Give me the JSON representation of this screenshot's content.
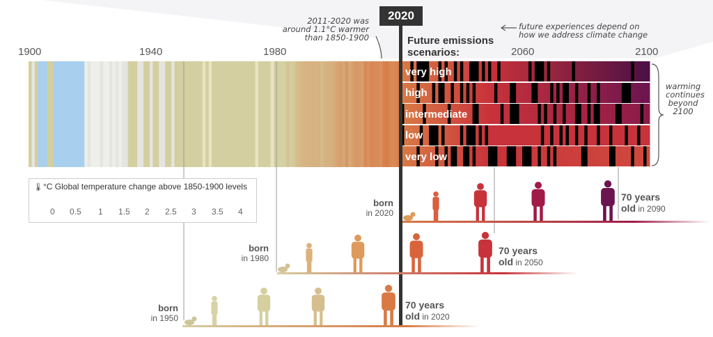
{
  "year_badge": "2020",
  "axis_years": [
    "1900",
    "1940",
    "1980",
    "2060",
    "2100"
  ],
  "notes": {
    "past_line1": "2011-2020 was",
    "past_line2": "around 1.1°C warmer",
    "past_line3": "than 1850-1900",
    "future_line1": "future experiences depend on",
    "future_line2": "how we address climate change",
    "right_line1": "warming",
    "right_line2": "continues",
    "right_line3": "beyond",
    "right_line4": "2100"
  },
  "emissions_title_line1": "Future emissions",
  "emissions_title_line2": "scenarios:",
  "scenarios": [
    "very high",
    "high",
    "intermediate",
    "low",
    "very low"
  ],
  "legend": {
    "unit": "°C",
    "title": "Global temperature change above 1850-1900 levels",
    "ticks": [
      "0",
      "0.5",
      "1",
      "1.5",
      "2",
      "2.5",
      "3",
      "3.5",
      "4"
    ]
  },
  "cohorts": [
    {
      "born_word": "born",
      "born_year": "in 2020",
      "age_bold1": "70 years",
      "age_bold2": "old",
      "age_year": "in 2090"
    },
    {
      "born_word": "born",
      "born_year": "in 1980",
      "age_bold1": "70 years",
      "age_bold2": "old",
      "age_year": "in 2050"
    },
    {
      "born_word": "born",
      "born_year": "in 1950",
      "age_bold1": "70 years",
      "age_bold2": "old",
      "age_year": "in 2020"
    }
  ],
  "colors": {
    "cold": "#a9cfee",
    "neutral": "#e4e4e0",
    "tan": "#d4cfa1",
    "orange": "#d97a45",
    "red": "#c8323a",
    "crimson": "#a01b47",
    "purple": "#4a0f45",
    "marker": "#333333"
  }
}
